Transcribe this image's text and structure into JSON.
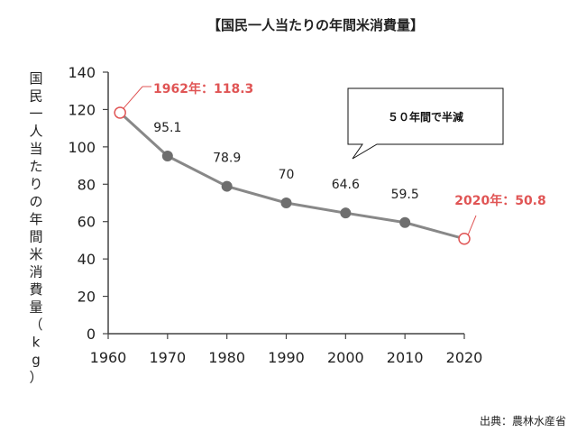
{
  "chart_data": {
    "type": "line",
    "title": "【国民一人当たりの年間米消費量】",
    "ylabel": "国民一人当たりの年間米消費量（kg）",
    "xlabel": "",
    "x": [
      1962,
      1970,
      1980,
      1990,
      2000,
      2010,
      2020
    ],
    "values": [
      118.3,
      95.1,
      78.9,
      70,
      64.6,
      59.5,
      50.8
    ],
    "point_labels": [
      "1962年：118.3",
      "95.1",
      "78.9",
      "70",
      "64.6",
      "59.5",
      "2020年：50.8"
    ],
    "highlighted_points": [
      0,
      6
    ],
    "xlim": [
      1960,
      2020
    ],
    "ylim": [
      0,
      140
    ],
    "xticks": [
      "1960",
      "1970",
      "1980",
      "1990",
      "2000",
      "2010",
      "2020"
    ],
    "yticks": [
      "0",
      "20",
      "40",
      "60",
      "80",
      "100",
      "120",
      "140"
    ],
    "grid": false,
    "callout": "５０年間で半減",
    "source": "出典：農林水産省",
    "colors": {
      "line": "#888888",
      "marker": "#6e6e6e",
      "highlight": "#e05555",
      "axis": "#444444"
    }
  }
}
